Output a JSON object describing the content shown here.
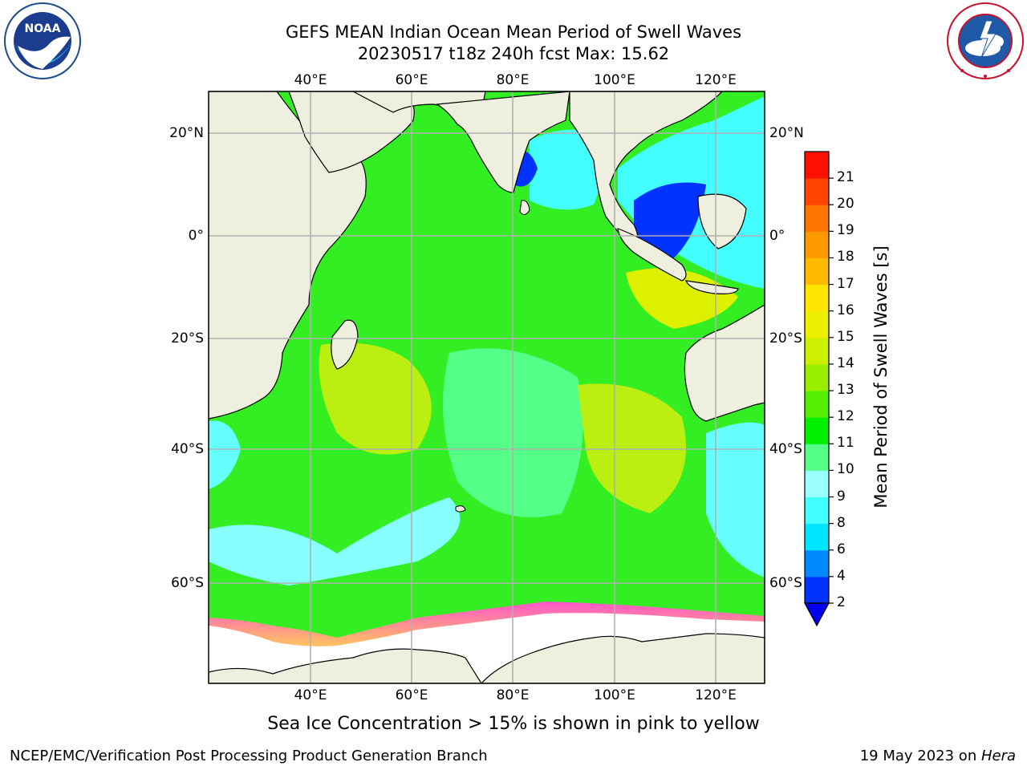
{
  "header": {
    "title_line1": "GEFS MEAN Indian Ocean Mean Period of Swell Waves",
    "title_line2": "20230517 t18z 240h fcst   Max: 15.62"
  },
  "logos": {
    "left": {
      "name": "noaa-logo",
      "text": "NOAA",
      "ring_text": "NATIONAL OCEANIC AND ATMOSPHERIC ADMINISTRATION · U.S. DEPARTMENT OF COMMERCE"
    },
    "right": {
      "name": "nws-logo",
      "ring_text": "NATIONAL WEATHER SERVICE"
    }
  },
  "map": {
    "lon_ticks": [
      "40°E",
      "60°E",
      "80°E",
      "100°E",
      "120°E"
    ],
    "lat_ticks_left": [
      "20°N",
      "0°",
      "20°S",
      "40°S",
      "60°S"
    ],
    "lat_ticks_right": [
      "20°N",
      "0°",
      "20°S",
      "40°S",
      "60°S"
    ],
    "land_color": "#efefdf",
    "grid_color": "#b0b0b0"
  },
  "colorbar": {
    "label": "Mean Period of Swell Waves [s]",
    "ticks": [
      "2",
      "4",
      "6",
      "8",
      "9",
      "10",
      "11",
      "12",
      "13",
      "14",
      "15",
      "16",
      "17",
      "18",
      "19",
      "20",
      "21"
    ],
    "colors": [
      "#0033ff",
      "#0088ff",
      "#00e5ff",
      "#44ffff",
      "#99ffff",
      "#55ff88",
      "#00ee00",
      "#55ee00",
      "#99ee00",
      "#ccf000",
      "#eeee00",
      "#ffe600",
      "#ffbb00",
      "#ff9900",
      "#ff7700",
      "#ff4400",
      "#ff1100"
    ],
    "extend_color": "#0000ee"
  },
  "caption": "Sea Ice Concentration > 15% is shown in pink to yellow",
  "footer": {
    "left": "NCEP/EMC/Verification Post Processing Product Generation Branch",
    "right_prefix": "19 May 2023 on ",
    "right_host": "Hera"
  }
}
